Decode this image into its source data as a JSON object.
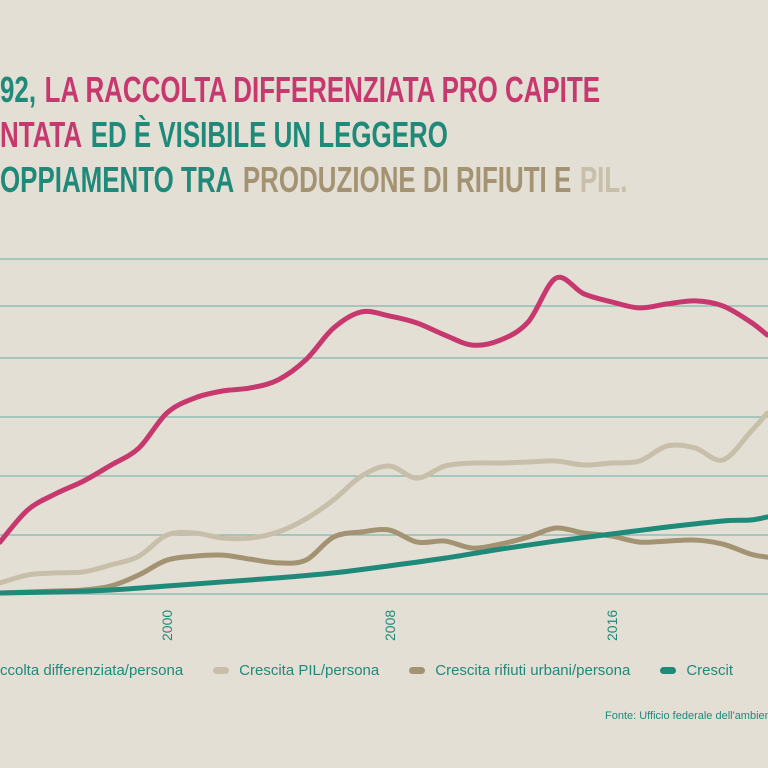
{
  "title": {
    "segments": [
      {
        "text": "92,",
        "color": "#1f8a7a"
      },
      {
        "text": "LA RACCOLTA DIFFERENZIATA PRO CAPITE",
        "color": "#c6386e"
      },
      {
        "text": "NTATA",
        "color": "#c6386e"
      },
      {
        "text": "ED È VISIBILE UN LEGGERO",
        "color": "#1f8a7a"
      },
      {
        "text": "OPPIAMENTO TRA",
        "color": "#1f8a7a"
      },
      {
        "text": "PRODUZIONE DI RIFIUTI E",
        "color": "#a39372"
      },
      {
        "text": "PIL.",
        "color": "#c8bfaa"
      }
    ]
  },
  "source": "Fonte: Ufficio federale dell'ambiente, S",
  "chart_data": {
    "type": "line",
    "xlabel": "",
    "ylabel": "",
    "x_ticks": [
      "2000",
      "2008",
      "2016"
    ],
    "xlim": [
      1994,
      2021.6
    ],
    "ylim": [
      0,
      100
    ],
    "grid": true,
    "legend_position": "bottom",
    "background": "#e3dfd5",
    "grid_color": "#7fb8ad",
    "series": [
      {
        "name": "ccolta differenziata/persona",
        "color": "#c6386e",
        "x": [
          1994,
          1995,
          1996,
          1997,
          1998,
          1999,
          2000,
          2001,
          2002,
          2003,
          2004,
          2005,
          2006,
          2007,
          2008,
          2009,
          2010,
          2011,
          2012,
          2013,
          2014,
          2015,
          2016,
          2017,
          2018,
          2019,
          2020,
          2021,
          2021.6
        ],
        "values": [
          15.5,
          25.1,
          29.9,
          33.7,
          38.5,
          43.6,
          54.0,
          58.5,
          60.6,
          61.5,
          63.9,
          69.9,
          79.4,
          84.2,
          83.0,
          80.9,
          77.3,
          74.3,
          75.8,
          81.2,
          94.3,
          89.6,
          87.2,
          85.4,
          86.6,
          87.5,
          86.0,
          81.2,
          77.3
        ]
      },
      {
        "name": "Crescita PIL/persona",
        "color": "#c8bfaa",
        "x": [
          1994,
          1995,
          1996,
          1997,
          1998,
          1999,
          2000,
          2001,
          2002,
          2003,
          2004,
          2005,
          2006,
          2007,
          2008,
          2009,
          2010,
          2011,
          2012,
          2013,
          2014,
          2015,
          2016,
          2017,
          2018,
          2019,
          2020,
          2021,
          2021.6
        ],
        "values": [
          3.3,
          5.7,
          6.3,
          6.6,
          8.7,
          11.3,
          17.6,
          18.2,
          16.7,
          16.7,
          18.5,
          22.4,
          28.1,
          35.2,
          38.2,
          34.6,
          38.2,
          39.1,
          39.1,
          39.4,
          39.7,
          38.5,
          39.1,
          39.7,
          44.2,
          43.6,
          40.0,
          48.4,
          54.0
        ]
      },
      {
        "name": "Crescita rifiuti urbani/persona",
        "color": "#a39372",
        "x": [
          1994,
          1995,
          1996,
          1997,
          1998,
          1999,
          2000,
          2001,
          2002,
          2003,
          2004,
          2005,
          2006,
          2007,
          2008,
          2009,
          2010,
          2011,
          2012,
          2013,
          2014,
          2015,
          2016,
          2017,
          2018,
          2019,
          2020,
          2021,
          2021.6
        ],
        "values": [
          0.3,
          0.6,
          0.9,
          1.2,
          2.4,
          5.7,
          10.1,
          11.3,
          11.6,
          10.4,
          9.3,
          10.1,
          17.0,
          18.5,
          19.1,
          15.5,
          15.8,
          13.7,
          14.9,
          17.0,
          19.7,
          18.2,
          17.3,
          15.5,
          15.8,
          16.1,
          14.9,
          11.9,
          11.0
        ]
      },
      {
        "name": "Crescit",
        "color": "#1f8a7a",
        "x": [
          1994,
          1996,
          1998,
          2000,
          2002,
          2004,
          2006,
          2008,
          2010,
          2012,
          2014,
          2016,
          2018,
          2020,
          2021,
          2021.6
        ],
        "values": [
          0.3,
          0.6,
          1.2,
          2.4,
          3.6,
          4.8,
          6.3,
          8.4,
          10.7,
          13.4,
          15.8,
          17.9,
          20.0,
          21.8,
          22.1,
          23.0
        ]
      }
    ]
  }
}
